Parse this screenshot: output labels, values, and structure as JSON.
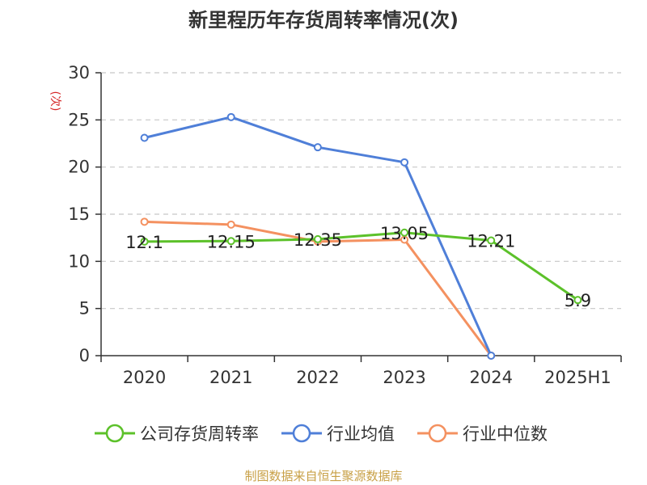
{
  "colors": {
    "company": "#5cc12a",
    "industry_avg": "#4f7fd8",
    "industry_median": "#f49160",
    "axis": "#333333",
    "grid": "#c8c8c8",
    "source": "#c8a046"
  },
  "chart_data": {
    "type": "line",
    "title": "新里程历年存货周转率情况(次)",
    "ylabel": "(次)",
    "xlabel": "",
    "ylim": [
      0,
      30
    ],
    "yticks": [
      0,
      5,
      10,
      15,
      20,
      25,
      30
    ],
    "grid": true,
    "legend_position": "bottom",
    "categories": [
      "2020",
      "2021",
      "2022",
      "2023",
      "2024",
      "2025H1"
    ],
    "series": [
      {
        "key": "company",
        "name": "公司存货周转率",
        "values": [
          12.1,
          12.15,
          12.35,
          13.05,
          12.21,
          5.9
        ],
        "labels": [
          "12.1",
          "12.15",
          "12.35",
          "13.05",
          "12.21",
          "5.9"
        ]
      },
      {
        "key": "industry_avg",
        "name": "行业均值",
        "values": [
          23.1,
          25.3,
          22.1,
          20.5,
          0,
          null
        ]
      },
      {
        "key": "industry_median",
        "name": "行业中位数",
        "values": [
          14.2,
          13.9,
          12.1,
          12.3,
          0,
          null
        ]
      }
    ]
  },
  "source": "制图数据来自恒生聚源数据库"
}
